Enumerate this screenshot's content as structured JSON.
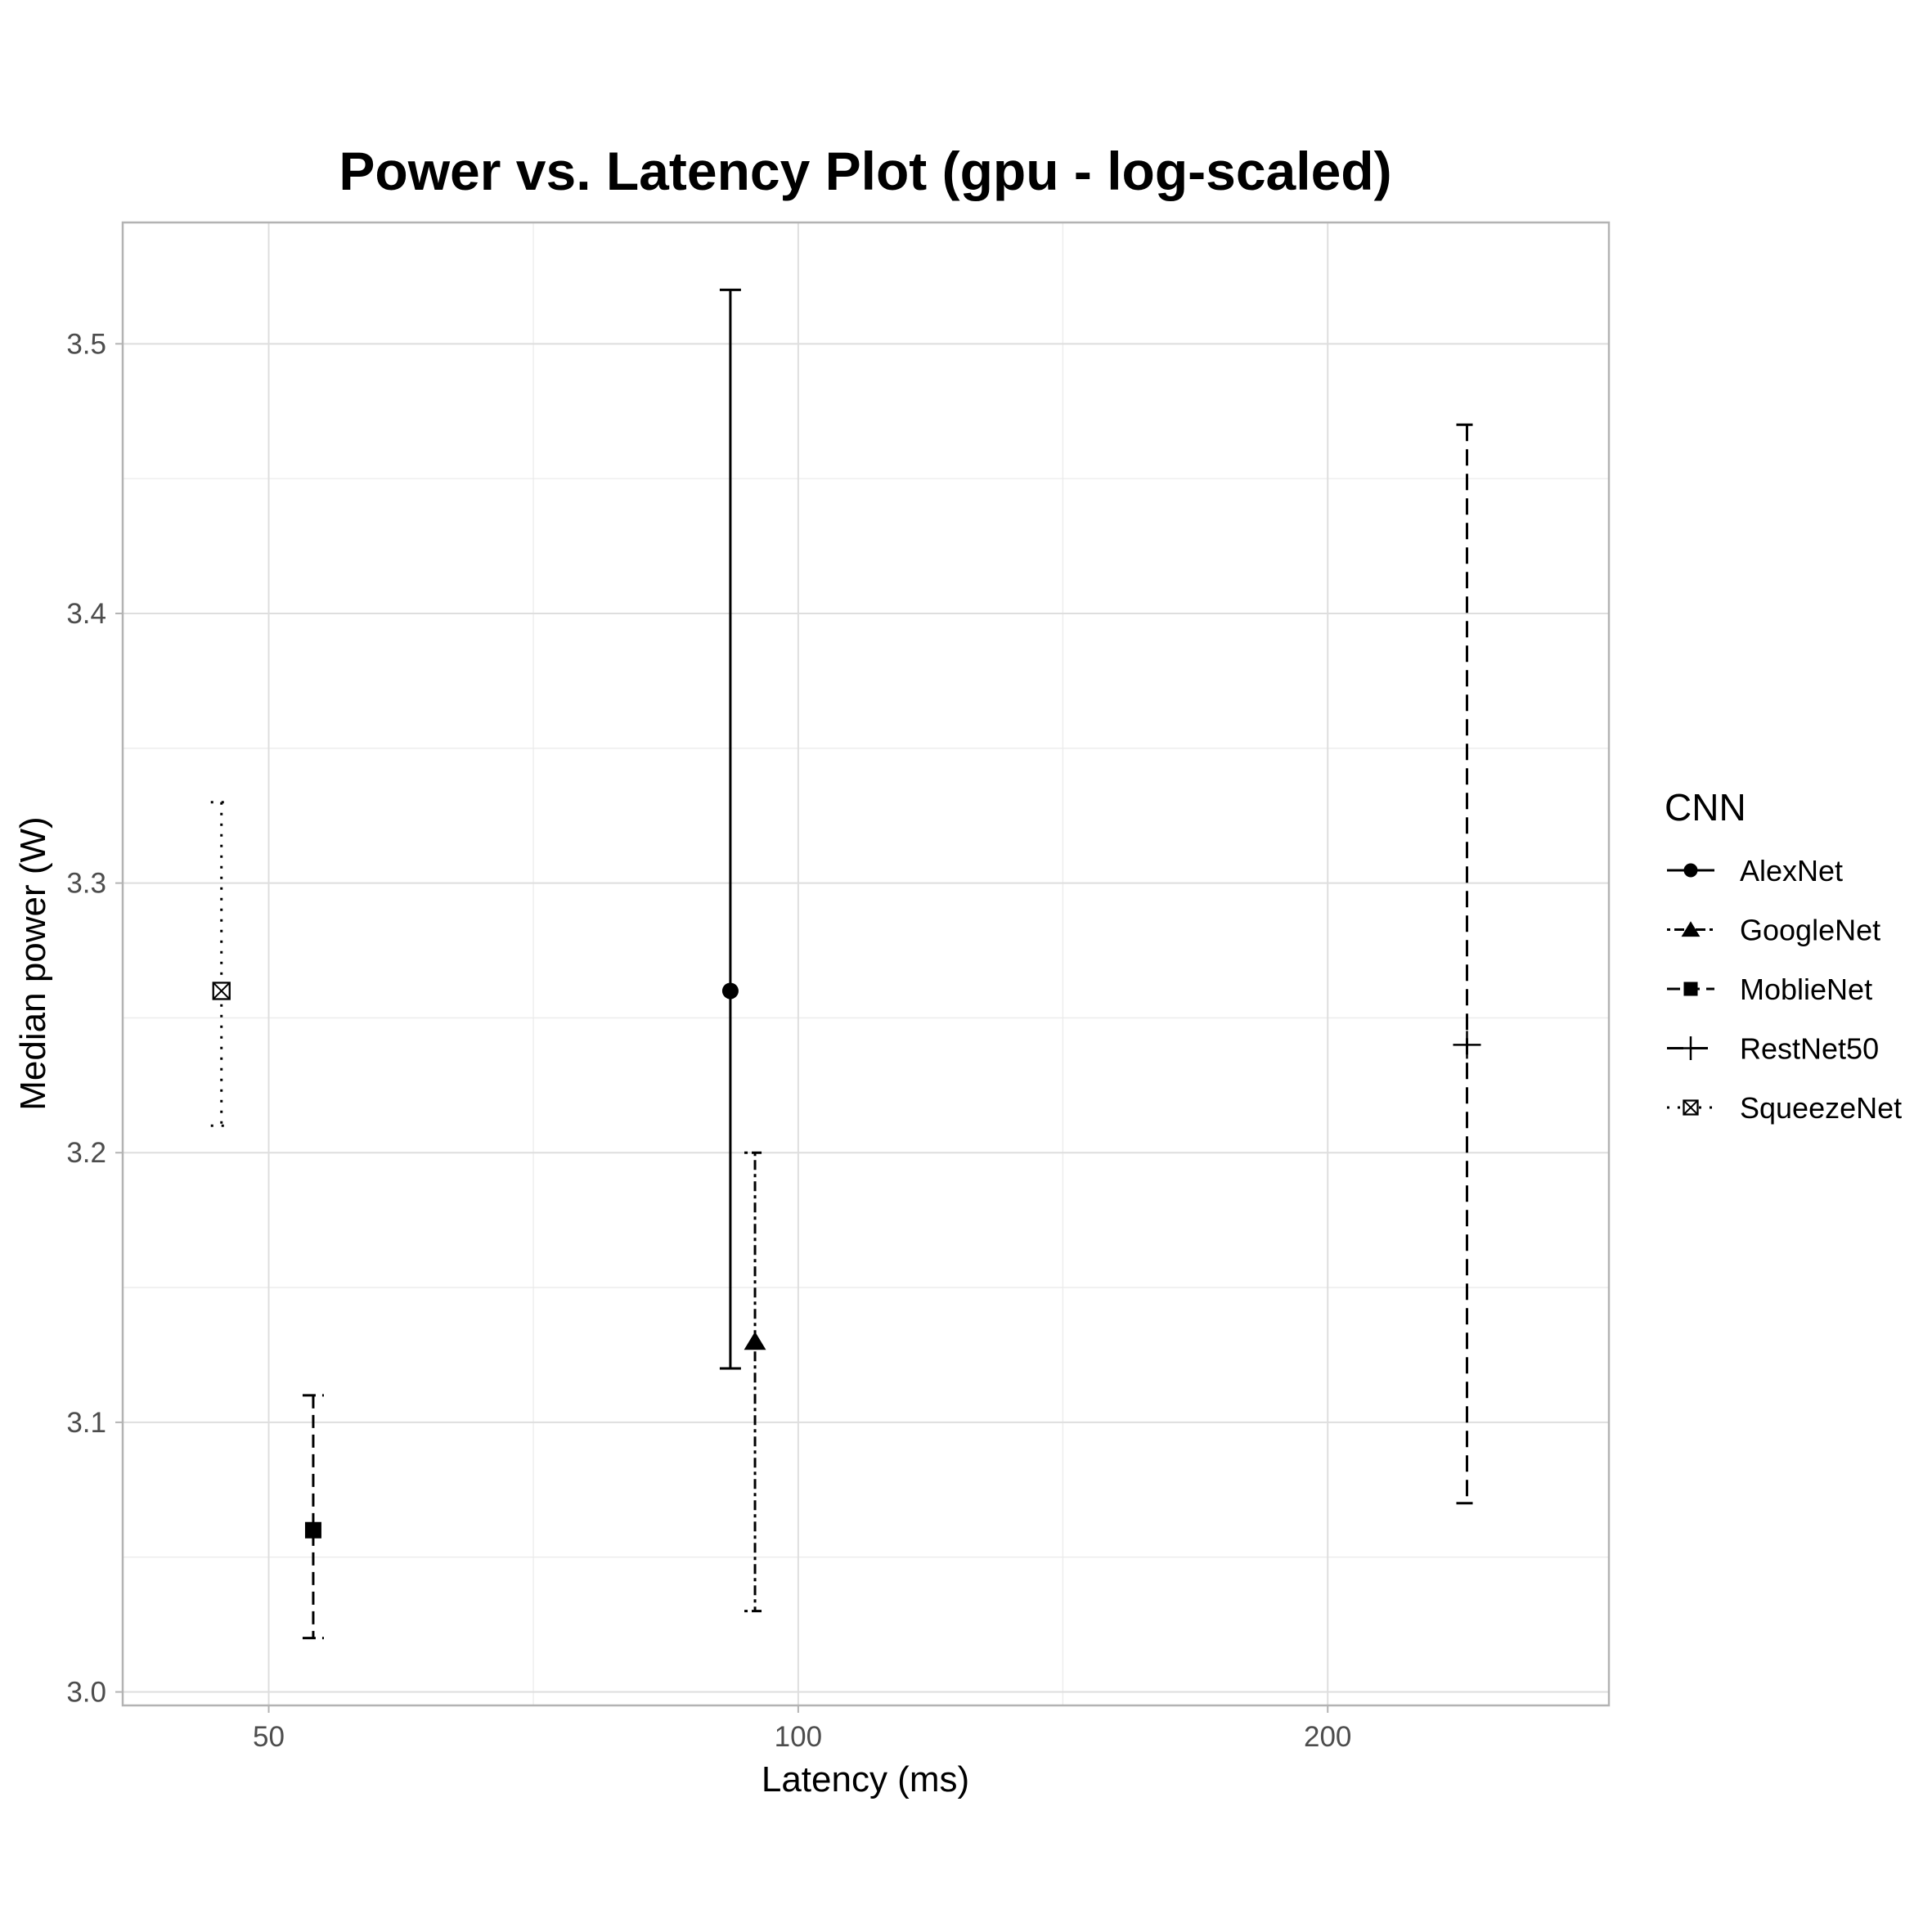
{
  "chart_data": {
    "type": "scatter",
    "title": "Power vs. Latency Plot (gpu - log-scaled)",
    "xlabel": "Latency (ms)",
    "ylabel": "Median power (W)",
    "x_scale": "log",
    "xlim": [
      41.3,
      289
    ],
    "ylim": [
      2.995,
      3.545
    ],
    "x_ticks": [
      {
        "value": 50,
        "label": "50"
      },
      {
        "value": 100,
        "label": "100"
      },
      {
        "value": 200,
        "label": "200"
      }
    ],
    "x_minor_ticks": [
      70.7,
      141.4
    ],
    "y_ticks": [
      {
        "value": 3.0,
        "label": "3.0"
      },
      {
        "value": 3.1,
        "label": "3.1"
      },
      {
        "value": 3.2,
        "label": "3.2"
      },
      {
        "value": 3.3,
        "label": "3.3"
      },
      {
        "value": 3.4,
        "label": "3.4"
      },
      {
        "value": 3.5,
        "label": "3.5"
      }
    ],
    "y_minor_ticks": [
      3.05,
      3.15,
      3.25,
      3.35,
      3.45
    ],
    "grid": true,
    "legend": {
      "title": "CNN",
      "position": "right"
    },
    "series": [
      {
        "name": "AlexNet",
        "x": 91.5,
        "y": 3.26,
        "ymin": 3.12,
        "ymax": 3.52,
        "shape": "circle",
        "linetype": "solid"
      },
      {
        "name": "GoogleNet",
        "x": 94.5,
        "y": 3.13,
        "ymin": 3.03,
        "ymax": 3.2,
        "shape": "triangle",
        "linetype": "dotdash"
      },
      {
        "name": "MoblieNet",
        "x": 53.0,
        "y": 3.06,
        "ymin": 3.02,
        "ymax": 3.11,
        "shape": "square",
        "linetype": "dashed"
      },
      {
        "name": "RestNet50",
        "x": 240.0,
        "y": 3.24,
        "ymin": 3.07,
        "ymax": 3.47,
        "shape": "plus",
        "linetype": "longdash"
      },
      {
        "name": "SqueezeNet",
        "x": 47.0,
        "y": 3.26,
        "ymin": 3.21,
        "ymax": 3.33,
        "shape": "square-cross",
        "linetype": "dotted"
      }
    ]
  }
}
